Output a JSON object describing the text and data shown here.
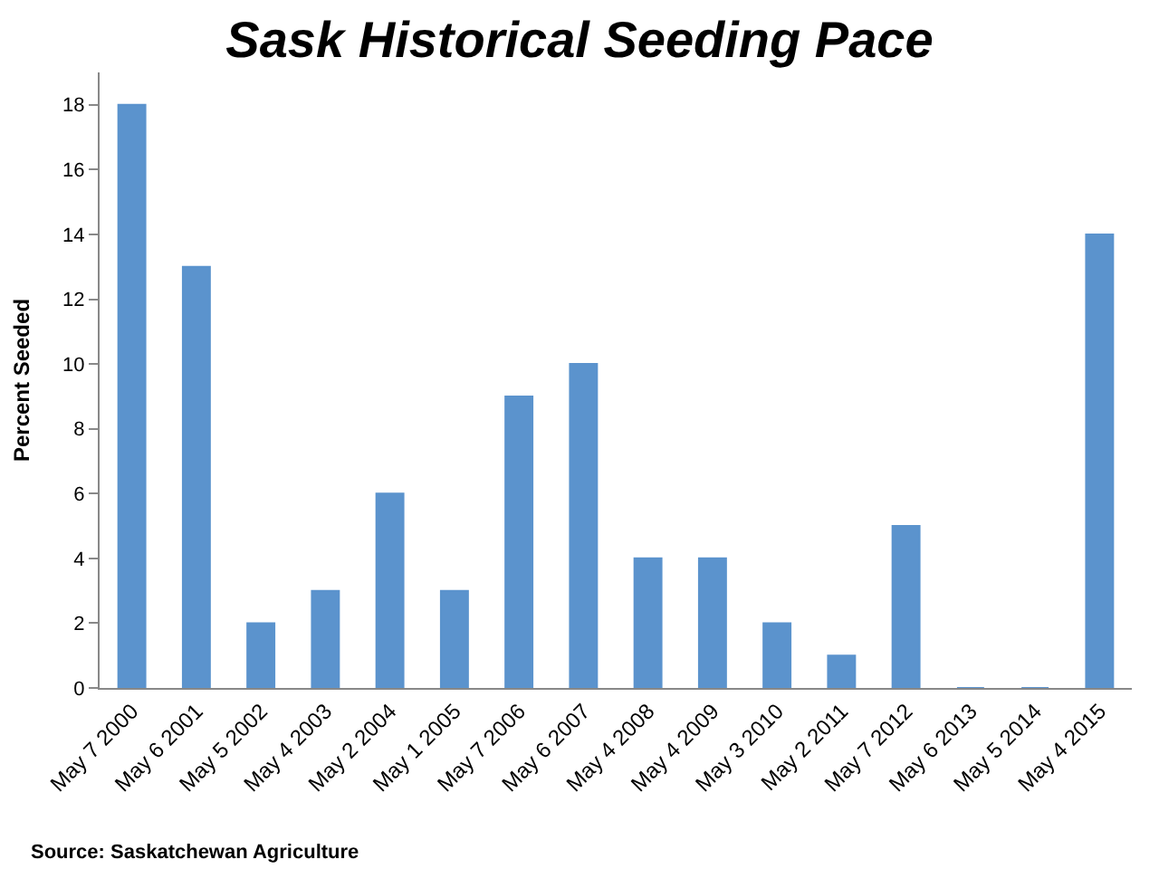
{
  "chart_data": {
    "type": "bar",
    "title": "Sask Historical Seeding Pace",
    "ylabel": "Percent Seeded",
    "categories": [
      "May 7 2000",
      "May 6 2001",
      "May 5 2002",
      "May 4 2003",
      "May 2 2004",
      "May 1 2005",
      "May 7 2006",
      "May 6 2007",
      "May 4 2008",
      "May 4 2009",
      "May 3 2010",
      "May 2 2011",
      "May 7 2012",
      "May 6 2013",
      "May 5 2014",
      "May 4 2015"
    ],
    "values": [
      18,
      13,
      2,
      3,
      6,
      3,
      9,
      10,
      4,
      4,
      2,
      1,
      5,
      0,
      0,
      14
    ],
    "color": "#5b93cd",
    "ylim": [
      0,
      19
    ],
    "yticks": [
      0,
      2,
      4,
      6,
      8,
      10,
      12,
      14,
      16,
      18
    ],
    "annotations": [
      "Source: Saskatchewan Agriculture"
    ]
  }
}
